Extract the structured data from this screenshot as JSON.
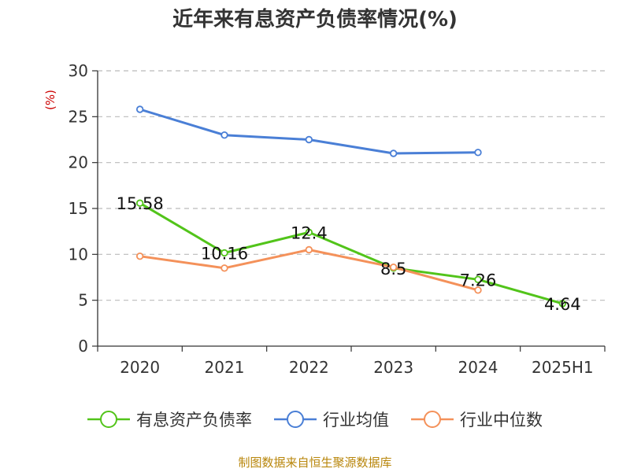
{
  "chart_data": {
    "type": "line",
    "title": "近年来有息资产负债率情况(%)",
    "ylabel": "(%)",
    "categories": [
      "2020",
      "2021",
      "2022",
      "2023",
      "2024",
      "2025H1"
    ],
    "ylim": [
      0,
      30
    ],
    "yticks": [
      "0",
      "5",
      "10",
      "15",
      "20",
      "25",
      "30"
    ],
    "grid": true,
    "legend_position": "bottom",
    "series": [
      {
        "name": "有息资产负债率",
        "color": "#52c41a",
        "values": [
          15.58,
          10.16,
          12.4,
          8.5,
          7.26,
          4.64
        ],
        "labels": [
          "15.58",
          "10.16",
          "12.4",
          "8.5",
          "7.26",
          "4.64"
        ]
      },
      {
        "name": "行业均值",
        "color": "#4a7fd6",
        "values": [
          25.8,
          23.0,
          22.5,
          21.0,
          21.1,
          null
        ]
      },
      {
        "name": "行业中位数",
        "color": "#f4915a",
        "values": [
          9.8,
          8.5,
          10.5,
          8.6,
          6.1,
          null
        ]
      }
    ],
    "source": "制图数据来自恒生聚源数据库"
  }
}
